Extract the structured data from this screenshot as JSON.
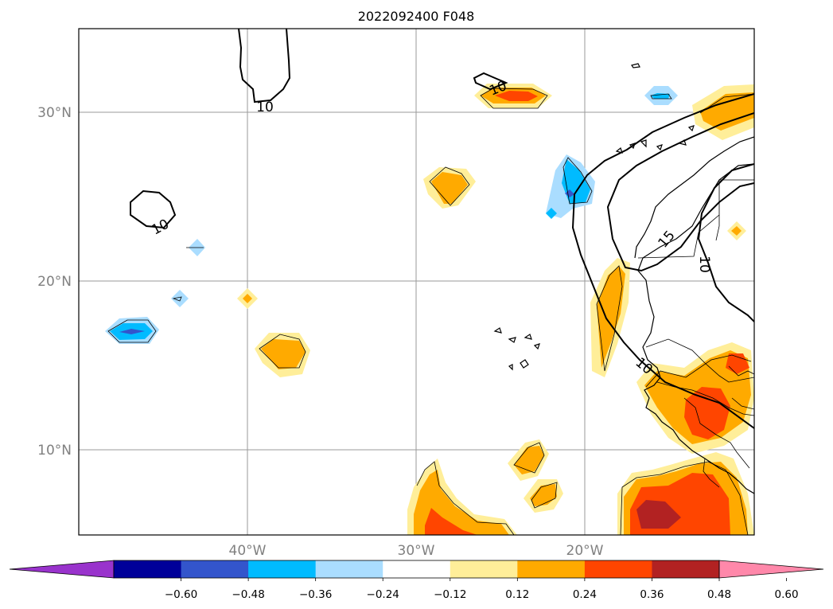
{
  "title": "2022092400 F048",
  "map": {
    "lat_labels": [
      "30°N",
      "20°N",
      "10°N"
    ],
    "lon_labels": [
      "40°W",
      "30°W",
      "20°W"
    ],
    "contour_labels": [
      "10",
      "10",
      "10",
      "10",
      "15",
      "10"
    ],
    "gridlines": true
  },
  "colorbar": {
    "colors": [
      "#9933cc",
      "#000099",
      "#3355cc",
      "#00bbff",
      "#aaddff",
      "#ffffff",
      "#ffee99",
      "#ffaa00",
      "#ff4500",
      "#b22222",
      "#ff88aa"
    ],
    "tick_labels": [
      "−0.60",
      "−0.48",
      "−0.36",
      "−0.24",
      "−0.12",
      "0.12",
      "0.24",
      "0.36",
      "0.48",
      "0.60"
    ],
    "extend": "both"
  }
}
